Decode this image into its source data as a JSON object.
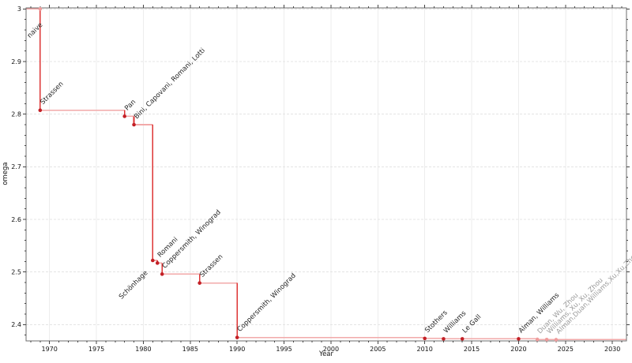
{
  "chart_data": {
    "type": "line",
    "subtype": "step-function",
    "title": "",
    "xlabel": "Year",
    "ylabel": "omega",
    "xlim": [
      1967.5,
      2031.5
    ],
    "ylim": [
      2.369,
      3.002
    ],
    "x_major_ticks": [
      1970,
      1975,
      1980,
      1985,
      1990,
      1995,
      2000,
      2005,
      2010,
      2015,
      2020,
      2025,
      2030
    ],
    "x_minor_step": 1,
    "y_major_ticks": [
      2.4,
      2.5,
      2.6,
      2.7,
      2.8,
      2.9,
      3
    ],
    "y_minor_step": 0.02,
    "grid": true,
    "legend": "none",
    "start_omega": 3.0,
    "naive_point": {
      "year": 1969,
      "omega": 3.0,
      "label": "naive"
    },
    "events": [
      {
        "year": 1969,
        "omega": 2.8074,
        "label": "Strassen"
      },
      {
        "year": 1978,
        "omega": 2.796,
        "label": "Pan"
      },
      {
        "year": 1979,
        "omega": 2.78,
        "label": "Bini, Capovani, Romani, Lotti"
      },
      {
        "year": 1981,
        "omega": 2.522,
        "label": "Schönhage",
        "label_side": "below"
      },
      {
        "year": 1981.5,
        "omega": 2.517,
        "label": "Romani"
      },
      {
        "year": 1982,
        "omega": 2.496,
        "label": "Coppersmith, Winograd"
      },
      {
        "year": 1986,
        "omega": 2.479,
        "label": "Strassen"
      },
      {
        "year": 1990,
        "omega": 2.3755,
        "label": "Coppersmith, Winograd"
      },
      {
        "year": 2010,
        "omega": 2.3737,
        "label": "Stothers"
      },
      {
        "year": 2012,
        "omega": 2.3729,
        "label": "Williams"
      },
      {
        "year": 2014,
        "omega": 2.3728639,
        "label": "Le Gall"
      },
      {
        "year": 2020,
        "omega": 2.3728596,
        "label": "Alman, Williams"
      },
      {
        "year": 2022,
        "omega": 2.371866,
        "label": "Duan, Wu, Zhou",
        "muted": true
      },
      {
        "year": 2023,
        "omega": 2.371552,
        "label": "Williams, Xu, Xu, Zhou",
        "muted": true
      },
      {
        "year": 2024,
        "omega": 2.371339,
        "label": "Alman,Duan,Williams,Xu,Xu,Zhou",
        "muted": true
      }
    ],
    "colors": {
      "vertical_line": "#dd3434",
      "horizontal_line": "#f2a9a9",
      "point": "#c32026",
      "muted_point": "#ef9c9c",
      "label": "#1f1f1f",
      "muted_label": "#9a9a9a",
      "grid_vertical": "#ededed",
      "grid_horizontal": "#e4e4e4",
      "frame": "#6e6e6e",
      "tick": "#444444",
      "tick_label": "#111111"
    }
  }
}
